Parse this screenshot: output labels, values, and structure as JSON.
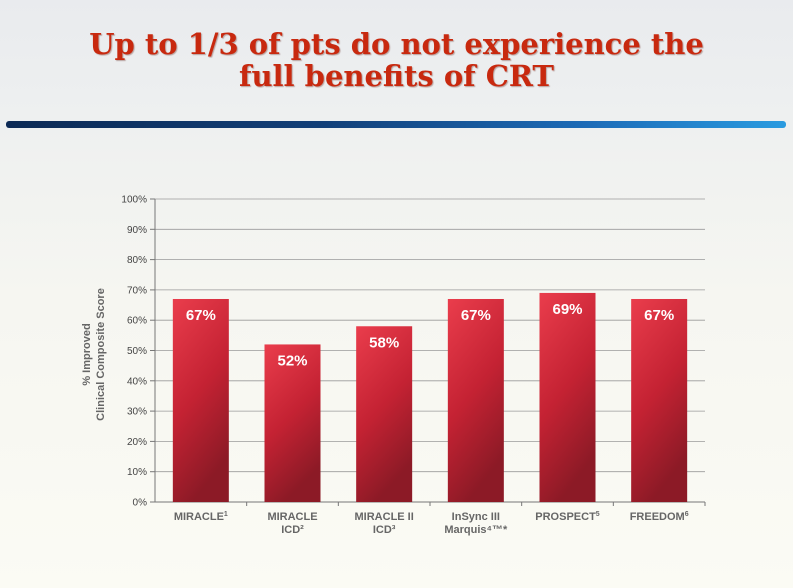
{
  "slide": {
    "title_line1": "Up to 1/3 of pts do not experience the",
    "title_line2": "full benefits of CRT"
  },
  "colors": {
    "title": "#c8290f",
    "bar_top": "#ea3d4c",
    "bar_bottom": "#8c1a26",
    "rule_start": "#0c2a55",
    "rule_end": "#2a9be0"
  },
  "chart_data": {
    "type": "bar",
    "ylabel_line1": "% Improved",
    "ylabel_line2": "Clinical Composite Score",
    "ylim": [
      0,
      100
    ],
    "yticks": [
      "0%",
      "10%",
      "20%",
      "30%",
      "40%",
      "50%",
      "60%",
      "70%",
      "80%",
      "90%",
      "100%"
    ],
    "grid": true,
    "categories": [
      {
        "line1": "MIRACLE",
        "sup1": "1",
        "line2": ""
      },
      {
        "line1": "MIRACLE",
        "sup1": "",
        "line2": "ICD²"
      },
      {
        "line1": "MIRACLE II",
        "sup1": "",
        "line2": "ICD³"
      },
      {
        "line1": "InSync III",
        "sup1": "",
        "line2": "Marquis⁴™*"
      },
      {
        "line1": "PROSPECT",
        "sup1": "5",
        "line2": ""
      },
      {
        "line1": "FREEDOM",
        "sup1": "6",
        "line2": ""
      }
    ],
    "values": [
      67,
      52,
      58,
      67,
      69,
      67
    ],
    "data_labels": [
      "67%",
      "52%",
      "58%",
      "67%",
      "69%",
      "67%"
    ]
  }
}
